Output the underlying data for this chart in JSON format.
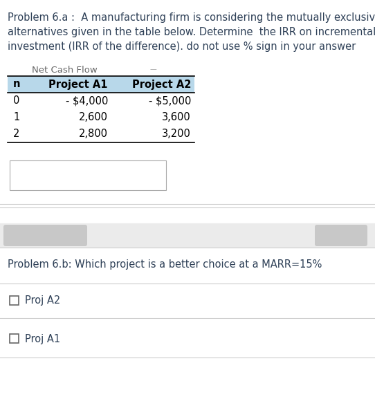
{
  "title_6a_line1": "Problem 6.a :  A manufacturing firm is considering the mutually exclusive",
  "title_6a_line2": "alternatives given in the table below. Determine  the IRR on incremental",
  "title_6a_line3": "investment (IRR of the difference). do not use % sign in your answer",
  "table_header": [
    "n",
    "Project A1",
    "Project A2"
  ],
  "table_subheader": "Net Cash Flow",
  "table_rows": [
    [
      "0",
      "- $4,000",
      "- $5,000"
    ],
    [
      "1",
      "2,600",
      "3,600"
    ],
    [
      "2",
      "2,800",
      "3,200"
    ]
  ],
  "header_bg_color": "#b8d8ea",
  "title_6b": "Problem 6.b: Which project is a better choice at a MARR=15%",
  "option1": "Proj A2",
  "option2": "Proj A1",
  "bg_color": "#ffffff",
  "text_color": "#2E4057",
  "table_text_color": "#000000",
  "title_fontsize": 10.5,
  "table_fontsize": 10.5,
  "6b_fontsize": 10.5,
  "subheader_fontsize": 9.5
}
